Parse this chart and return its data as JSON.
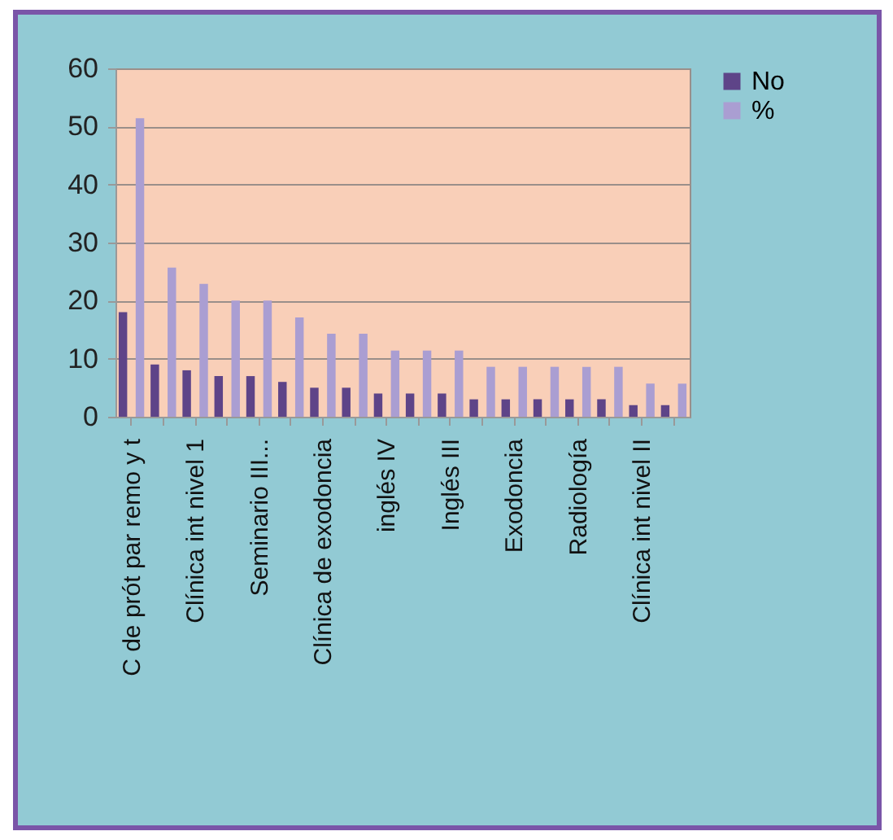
{
  "chart_data": {
    "type": "bar",
    "categories": [
      "C de prót par remo y t",
      null,
      "Clínica int nivel 1",
      null,
      "Seminario III...",
      null,
      "Clínica de exodoncia",
      null,
      "inglés IV",
      null,
      "Inglés III",
      null,
      "Exodoncia",
      null,
      "Radiología",
      null,
      "Clínica int nivel II",
      null
    ],
    "series": [
      {
        "name": "No",
        "color": "#5e4488",
        "values": [
          18,
          9,
          8,
          7,
          7,
          6,
          5,
          5,
          4,
          4,
          4,
          3,
          3,
          3,
          3,
          3,
          2,
          2
        ]
      },
      {
        "name": "%",
        "color": "#aa9ed2",
        "values": [
          51.4,
          25.7,
          22.9,
          20,
          20,
          17.1,
          14.3,
          14.3,
          11.4,
          11.4,
          11.4,
          8.6,
          8.6,
          8.6,
          8.6,
          8.6,
          5.7,
          5.7
        ]
      }
    ],
    "ylim": [
      0,
      60
    ],
    "yticks": [
      0,
      10,
      20,
      30,
      40,
      50,
      60
    ],
    "grid": "y",
    "legend": "right"
  }
}
